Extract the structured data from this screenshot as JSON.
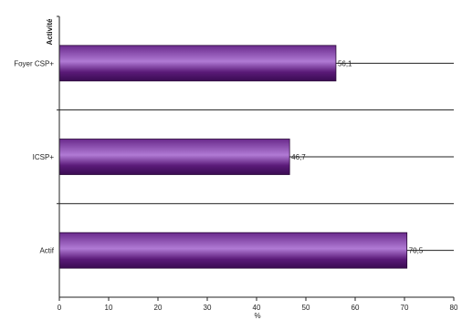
{
  "chart_data": {
    "type": "bar",
    "orientation": "horizontal",
    "categories": [
      "Foyer CSP+",
      "ICSP+",
      "Actif"
    ],
    "values": [
      56.1,
      46.7,
      70.5
    ],
    "value_labels": [
      "56,1",
      "46,7",
      "70,5"
    ],
    "title": "",
    "ylabel": "Activité",
    "xlabel": "%",
    "xlim": [
      0,
      80
    ],
    "xticks": [
      0,
      10,
      20,
      30,
      40,
      50,
      60,
      70,
      80
    ],
    "bar_color": "#5a1a78",
    "bar_highlight_color": "#a070c8",
    "grid": false,
    "legend": "none"
  }
}
